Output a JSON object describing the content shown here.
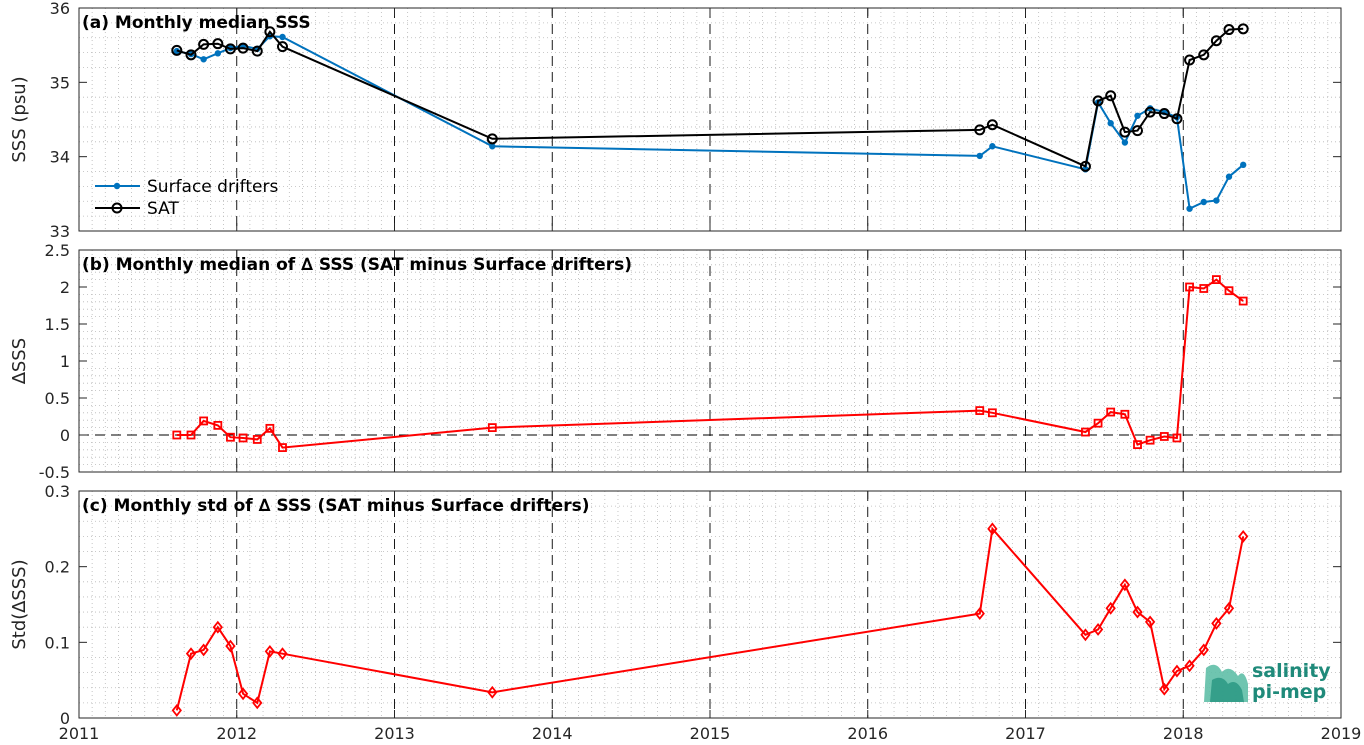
{
  "chart_data": [
    {
      "type": "line",
      "title": "(a) Monthly median SSS",
      "ylabel": "SSS (psu)",
      "ylim": [
        33,
        36
      ],
      "yticks": [
        "33",
        "34",
        "35",
        "36"
      ],
      "xlim": [
        2011,
        2019
      ],
      "grid": "minor-dotted",
      "legend_position": "bottom-left",
      "series": [
        {
          "name": "Surface drifters",
          "color": "#0072bd",
          "marker": "filled-dot",
          "x": [
            2011.62,
            2011.71,
            2011.79,
            2011.88,
            2011.96,
            2012.04,
            2012.13,
            2012.21,
            2012.29,
            2013.62,
            2016.71,
            2016.79,
            2017.38,
            2017.46,
            2017.54,
            2017.63,
            2017.71,
            2017.79,
            2017.88,
            2017.96,
            2018.04,
            2018.13,
            2018.21,
            2018.29,
            2018.38
          ],
          "y": [
            35.42,
            35.38,
            35.31,
            35.39,
            35.46,
            35.49,
            35.45,
            35.62,
            35.61,
            34.14,
            34.01,
            34.14,
            33.83,
            34.73,
            34.45,
            34.19,
            34.55,
            34.65,
            34.6,
            34.53,
            33.3,
            33.39,
            33.41,
            33.73,
            33.89
          ]
        },
        {
          "name": "SAT",
          "color": "#000000",
          "marker": "open-circle",
          "x": [
            2011.62,
            2011.71,
            2011.79,
            2011.88,
            2011.96,
            2012.04,
            2012.13,
            2012.21,
            2012.29,
            2013.62,
            2016.71,
            2016.79,
            2017.38,
            2017.46,
            2017.54,
            2017.63,
            2017.71,
            2017.79,
            2017.88,
            2017.96,
            2018.04,
            2018.13,
            2018.21,
            2018.29,
            2018.38
          ],
          "y": [
            35.43,
            35.37,
            35.51,
            35.52,
            35.45,
            35.46,
            35.42,
            35.68,
            35.48,
            34.24,
            34.36,
            34.43,
            33.87,
            34.75,
            34.82,
            34.33,
            34.35,
            34.6,
            34.58,
            34.51,
            35.3,
            35.37,
            35.56,
            35.71,
            35.72
          ]
        }
      ]
    },
    {
      "type": "line",
      "title": "(b) Monthly median of ∆ SSS (SAT minus Surface drifters)",
      "ylabel": "∆SSS",
      "ylim": [
        -0.5,
        2.5
      ],
      "yticks": [
        "-0.5",
        "0",
        "0.5",
        "1",
        "1.5",
        "2",
        "2.5"
      ],
      "xlim": [
        2011,
        2019
      ],
      "zero_line": "dashed",
      "series": [
        {
          "color": "#ff0000",
          "marker": "open-square",
          "x": [
            2011.62,
            2011.71,
            2011.79,
            2011.88,
            2011.96,
            2012.04,
            2012.13,
            2012.21,
            2012.29,
            2013.62,
            2016.71,
            2016.79,
            2017.38,
            2017.46,
            2017.54,
            2017.63,
            2017.71,
            2017.79,
            2017.88,
            2017.96,
            2018.04,
            2018.13,
            2018.21,
            2018.29,
            2018.38
          ],
          "y": [
            0.0,
            0.0,
            0.19,
            0.13,
            -0.03,
            -0.04,
            -0.06,
            0.09,
            -0.17,
            0.1,
            0.33,
            0.3,
            0.04,
            0.16,
            0.31,
            0.28,
            -0.13,
            -0.07,
            -0.02,
            -0.04,
            2.0,
            1.98,
            2.1,
            1.95,
            1.81
          ]
        }
      ]
    },
    {
      "type": "line",
      "title": "(c) Monthly std of ∆ SSS (SAT minus Surface drifters)",
      "ylabel": "Std(∆SSS)",
      "ylim": [
        0,
        0.3
      ],
      "yticks": [
        "0",
        "0.1",
        "0.2",
        "0.3"
      ],
      "xlim": [
        2011,
        2019
      ],
      "xticks": [
        "2011",
        "2012",
        "2013",
        "2014",
        "2015",
        "2016",
        "2017",
        "2018",
        "2019"
      ],
      "series": [
        {
          "color": "#ff0000",
          "marker": "open-diamond",
          "x": [
            2011.62,
            2011.71,
            2011.79,
            2011.88,
            2011.96,
            2012.04,
            2012.13,
            2012.21,
            2012.29,
            2013.62,
            2016.71,
            2016.79,
            2017.38,
            2017.46,
            2017.54,
            2017.63,
            2017.71,
            2017.79,
            2017.88,
            2017.96,
            2018.04,
            2018.13,
            2018.21,
            2018.29,
            2018.38
          ],
          "y": [
            0.01,
            0.085,
            0.09,
            0.12,
            0.095,
            0.032,
            0.02,
            0.088,
            0.085,
            0.034,
            0.138,
            0.25,
            0.11,
            0.117,
            0.145,
            0.176,
            0.14,
            0.127,
            0.038,
            0.062,
            0.069,
            0.09,
            0.125,
            0.145,
            0.24
          ]
        }
      ]
    }
  ],
  "logo": {
    "line1": "salinity",
    "line2": "pi-mep",
    "color": "#1f8a7a"
  }
}
